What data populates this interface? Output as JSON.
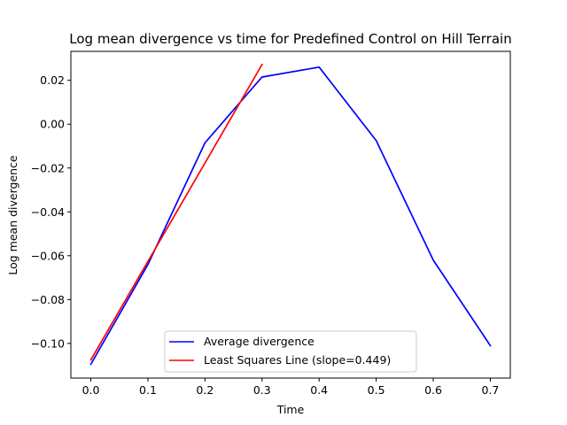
{
  "chart_data": {
    "type": "line",
    "title": "Log mean divergence vs time for Predefined Control on Hill Terrain",
    "xlabel": "Time",
    "ylabel": "Log mean divergence",
    "xlim": [
      -0.035,
      0.735
    ],
    "ylim": [
      -0.1158,
      0.0332
    ],
    "x_ticks": [
      0.0,
      0.1,
      0.2,
      0.3,
      0.4,
      0.5,
      0.6,
      0.7
    ],
    "x_tick_labels": [
      "0.0",
      "0.1",
      "0.2",
      "0.3",
      "0.4",
      "0.5",
      "0.6",
      "0.7"
    ],
    "y_ticks": [
      -0.1,
      -0.08,
      -0.06,
      -0.04,
      -0.02,
      0.0,
      0.02
    ],
    "y_tick_labels": [
      "−0.10",
      "−0.08",
      "−0.06",
      "−0.04",
      "−0.02",
      "0.00",
      "0.02"
    ],
    "grid": false,
    "legend_position": "lower center",
    "series": [
      {
        "name": "Average divergence",
        "color": "#0000ff",
        "x": [
          0.0,
          0.1,
          0.2,
          0.3,
          0.4,
          0.5,
          0.6,
          0.7
        ],
        "y": [
          -0.1095,
          -0.064,
          -0.0085,
          0.0215,
          0.026,
          -0.0075,
          -0.062,
          -0.101
        ]
      },
      {
        "name": "Least Squares Line (slope=0.449)",
        "color": "#ff0000",
        "x": [
          0.0,
          0.3
        ],
        "y": [
          -0.1075,
          0.0272
        ]
      }
    ]
  }
}
